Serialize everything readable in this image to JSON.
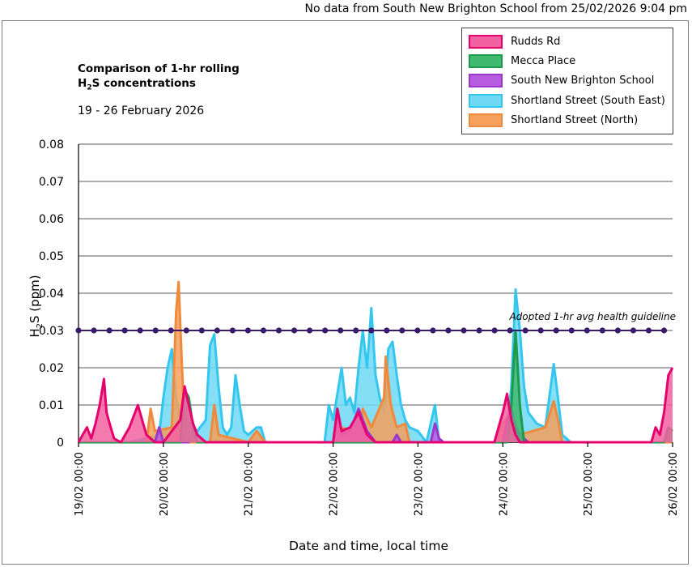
{
  "notice": "No data from South New Brighton School from 25/02/2026 9:04 pm",
  "title_line1": "Comparison of 1-hr rolling",
  "title_line2_pre": "H",
  "title_line2_sub": "2",
  "title_line2_post": "S concentrations",
  "subtitle": "19 - 26 February 2026",
  "chart_data": {
    "type": "area",
    "title": "Comparison of 1-hr rolling H2S concentrations",
    "subtitle": "19 - 26 February 2026",
    "xlabel": "Date and time, local time",
    "ylabel_pre": "H",
    "ylabel_sub": "2",
    "ylabel_post": "S (ppm)",
    "ylim": [
      0,
      0.08
    ],
    "yticks": [
      "0",
      "0.01",
      "0.02",
      "0.03",
      "0.04",
      "0.05",
      "0.06",
      "0.07",
      "0.08"
    ],
    "xlim": [
      0,
      7
    ],
    "xticks": [
      "19/02 00:00",
      "20/02 00:00",
      "21/02 00:00",
      "22/02 00:00",
      "23/02 00:00",
      "24/02 00:00",
      "25/02 00:00",
      "26/02 00:00"
    ],
    "grid": "horizontal",
    "legend_position": "top-right",
    "guideline": {
      "label": "Adopted 1-hr avg health guideline",
      "value": 0.03
    },
    "series": [
      {
        "name": "Shortland Street (South East)",
        "fill": "#6fd8f4",
        "stroke": "#33c6ef",
        "points": [
          [
            0,
            0
          ],
          [
            0.6,
            0
          ],
          [
            0.8,
            0.001
          ],
          [
            0.95,
            0.002
          ],
          [
            1.0,
            0.012
          ],
          [
            1.05,
            0.02
          ],
          [
            1.1,
            0.025
          ],
          [
            1.15,
            0.012
          ],
          [
            1.2,
            0.006
          ],
          [
            1.3,
            0.005
          ],
          [
            1.4,
            0.003
          ],
          [
            1.5,
            0.006
          ],
          [
            1.55,
            0.026
          ],
          [
            1.6,
            0.029
          ],
          [
            1.65,
            0.015
          ],
          [
            1.7,
            0.004
          ],
          [
            1.75,
            0.002
          ],
          [
            1.8,
            0.004
          ],
          [
            1.85,
            0.018
          ],
          [
            1.9,
            0.01
          ],
          [
            1.95,
            0.003
          ],
          [
            2.0,
            0.002
          ],
          [
            2.1,
            0.004
          ],
          [
            2.15,
            0.004
          ],
          [
            2.2,
            0
          ],
          [
            2.9,
            0
          ],
          [
            2.95,
            0.01
          ],
          [
            3.0,
            0.006
          ],
          [
            3.1,
            0.02
          ],
          [
            3.15,
            0.01
          ],
          [
            3.2,
            0.012
          ],
          [
            3.25,
            0.008
          ],
          [
            3.3,
            0.02
          ],
          [
            3.35,
            0.03
          ],
          [
            3.4,
            0.02
          ],
          [
            3.45,
            0.036
          ],
          [
            3.5,
            0.018
          ],
          [
            3.55,
            0.012
          ],
          [
            3.6,
            0.008
          ],
          [
            3.65,
            0.025
          ],
          [
            3.7,
            0.027
          ],
          [
            3.75,
            0.018
          ],
          [
            3.8,
            0.01
          ],
          [
            3.85,
            0.006
          ],
          [
            3.9,
            0.004
          ],
          [
            4.0,
            0.003
          ],
          [
            4.1,
            0
          ],
          [
            4.2,
            0.01
          ],
          [
            4.25,
            0
          ],
          [
            5.0,
            0
          ],
          [
            5.05,
            0.003
          ],
          [
            5.1,
            0.015
          ],
          [
            5.15,
            0.041
          ],
          [
            5.2,
            0.03
          ],
          [
            5.25,
            0.015
          ],
          [
            5.3,
            0.008
          ],
          [
            5.4,
            0.005
          ],
          [
            5.5,
            0.004
          ],
          [
            5.6,
            0.021
          ],
          [
            5.65,
            0.012
          ],
          [
            5.7,
            0.002
          ],
          [
            5.8,
            0
          ],
          [
            7,
            0
          ]
        ]
      },
      {
        "name": "Shortland Street (North)",
        "fill": "#f5a05c",
        "stroke": "#ef8a3c",
        "points": [
          [
            0,
            0
          ],
          [
            0.8,
            0
          ],
          [
            0.85,
            0.009
          ],
          [
            0.9,
            0.003
          ],
          [
            1.1,
            0.004
          ],
          [
            1.15,
            0.035
          ],
          [
            1.18,
            0.043
          ],
          [
            1.22,
            0.02
          ],
          [
            1.25,
            0.005
          ],
          [
            1.3,
            0
          ],
          [
            1.55,
            0
          ],
          [
            1.6,
            0.01
          ],
          [
            1.65,
            0.002
          ],
          [
            2.0,
            0
          ],
          [
            2.1,
            0.003
          ],
          [
            2.2,
            0
          ],
          [
            3.0,
            0
          ],
          [
            3.05,
            0.004
          ],
          [
            3.3,
            0.003
          ],
          [
            3.35,
            0.009
          ],
          [
            3.45,
            0.004
          ],
          [
            3.6,
            0.012
          ],
          [
            3.62,
            0.023
          ],
          [
            3.68,
            0.01
          ],
          [
            3.75,
            0.004
          ],
          [
            3.85,
            0.005
          ],
          [
            3.9,
            0
          ],
          [
            4.9,
            0
          ],
          [
            5.0,
            0.005
          ],
          [
            5.1,
            0.008
          ],
          [
            5.2,
            0.002
          ],
          [
            5.5,
            0.004
          ],
          [
            5.6,
            0.011
          ],
          [
            5.65,
            0.006
          ],
          [
            5.7,
            0
          ],
          [
            7,
            0
          ]
        ]
      },
      {
        "name": "South New Brighton School",
        "fill": "#b95de0",
        "stroke": "#9b37cc",
        "points": [
          [
            0,
            0
          ],
          [
            0.9,
            0
          ],
          [
            0.95,
            0.004
          ],
          [
            1.0,
            0
          ],
          [
            1.3,
            0
          ],
          [
            1.35,
            0.003
          ],
          [
            1.4,
            0
          ],
          [
            3.0,
            0
          ],
          [
            3.05,
            0.008
          ],
          [
            3.1,
            0.002
          ],
          [
            3.2,
            0.003
          ],
          [
            3.3,
            0.009
          ],
          [
            3.35,
            0.006
          ],
          [
            3.4,
            0.003
          ],
          [
            3.5,
            0
          ],
          [
            3.7,
            0
          ],
          [
            3.75,
            0.002
          ],
          [
            3.8,
            0
          ],
          [
            4.15,
            0
          ],
          [
            4.2,
            0.005
          ],
          [
            4.25,
            0.001
          ],
          [
            4.3,
            0
          ],
          [
            5.0,
            0
          ],
          [
            5.05,
            0.006
          ],
          [
            5.1,
            0.009
          ],
          [
            5.15,
            0.004
          ],
          [
            5.2,
            0.002
          ],
          [
            5.3,
            0
          ],
          [
            6.3,
            0
          ]
        ]
      },
      {
        "name": "Mecca Place",
        "fill": "#3fba6e",
        "stroke": "#1e9a4e",
        "points": [
          [
            0,
            0
          ],
          [
            1.2,
            0
          ],
          [
            1.25,
            0.014
          ],
          [
            1.3,
            0.012
          ],
          [
            1.35,
            0.004
          ],
          [
            1.4,
            0
          ],
          [
            5.05,
            0
          ],
          [
            5.1,
            0.01
          ],
          [
            5.15,
            0.03
          ],
          [
            5.2,
            0.01
          ],
          [
            5.25,
            0
          ],
          [
            6.9,
            0
          ],
          [
            6.95,
            0.004
          ],
          [
            7,
            0.003
          ]
        ]
      },
      {
        "name": "Rudds Rd",
        "fill": "#f262a0",
        "stroke": "#e6006e",
        "points": [
          [
            0,
            0
          ],
          [
            0.05,
            0.002
          ],
          [
            0.1,
            0.004
          ],
          [
            0.15,
            0.001
          ],
          [
            0.2,
            0.005
          ],
          [
            0.25,
            0.01
          ],
          [
            0.3,
            0.017
          ],
          [
            0.33,
            0.008
          ],
          [
            0.38,
            0.004
          ],
          [
            0.42,
            0.001
          ],
          [
            0.5,
            0
          ],
          [
            0.6,
            0.004
          ],
          [
            0.7,
            0.01
          ],
          [
            0.75,
            0.006
          ],
          [
            0.8,
            0.002
          ],
          [
            0.9,
            0
          ],
          [
            1.0,
            0
          ],
          [
            1.1,
            0.003
          ],
          [
            1.2,
            0.006
          ],
          [
            1.25,
            0.015
          ],
          [
            1.3,
            0.01
          ],
          [
            1.35,
            0.005
          ],
          [
            1.4,
            0.002
          ],
          [
            1.5,
            0
          ],
          [
            3.0,
            0
          ],
          [
            3.05,
            0.009
          ],
          [
            3.1,
            0.003
          ],
          [
            3.2,
            0.004
          ],
          [
            3.3,
            0.008
          ],
          [
            3.35,
            0.005
          ],
          [
            3.4,
            0.002
          ],
          [
            3.5,
            0
          ],
          [
            4.9,
            0
          ],
          [
            4.95,
            0.004
          ],
          [
            5.0,
            0.008
          ],
          [
            5.05,
            0.013
          ],
          [
            5.1,
            0.006
          ],
          [
            5.15,
            0.002
          ],
          [
            5.2,
            0
          ],
          [
            6.75,
            0
          ],
          [
            6.8,
            0.004
          ],
          [
            6.85,
            0.002
          ],
          [
            6.9,
            0.008
          ],
          [
            6.95,
            0.018
          ],
          [
            7,
            0.02
          ]
        ]
      }
    ]
  },
  "legend_order": [
    "Rudds Rd",
    "Mecca Place",
    "South New Brighton School",
    "Shortland Street (South East)",
    "Shortland Street (North)"
  ]
}
